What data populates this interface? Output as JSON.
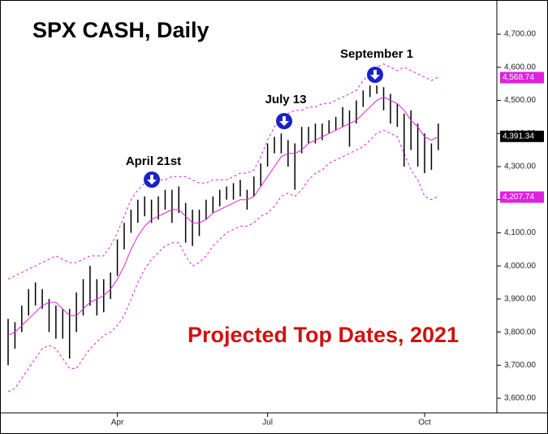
{
  "chart_data": {
    "type": "ohlc",
    "title": "SPX CASH, Daily",
    "subtitle": "Projected Top Dates, 2021",
    "annotations": [
      "April 21st",
      "July 13",
      "September 1"
    ],
    "categories": [
      null,
      null,
      null,
      null,
      null,
      null,
      null,
      null,
      null,
      null,
      null,
      null,
      null,
      null,
      null,
      null,
      "Apr",
      null,
      null,
      null,
      null,
      null,
      null,
      null,
      null,
      null,
      null,
      null,
      null,
      null,
      null,
      null,
      null,
      null,
      null,
      null,
      null,
      null,
      "Jul",
      null,
      null,
      null,
      null,
      null,
      null,
      null,
      null,
      null,
      null,
      null,
      null,
      null,
      null,
      null,
      null,
      null,
      null,
      null,
      null,
      null,
      null,
      "Oct",
      null,
      null
    ],
    "high": [
      3840,
      3830,
      3880,
      3930,
      3950,
      3930,
      3900,
      3880,
      3870,
      3870,
      3920,
      3960,
      4000,
      3960,
      3960,
      3980,
      4080,
      4130,
      4170,
      4200,
      4210,
      4200,
      4210,
      4230,
      4230,
      4240,
      4190,
      4170,
      4170,
      4200,
      4210,
      4230,
      4240,
      4250,
      4260,
      4230,
      4270,
      4310,
      4370,
      4390,
      4400,
      4380,
      4370,
      4420,
      4420,
      4430,
      4430,
      4440,
      4450,
      4480,
      4470,
      4500,
      4530,
      4545,
      4545,
      4540,
      4520,
      4490,
      4460,
      4470,
      4430,
      4400,
      4370,
      4430
    ],
    "low": [
      3700,
      3750,
      3800,
      3850,
      3880,
      3870,
      3800,
      3780,
      3780,
      3720,
      3800,
      3850,
      3880,
      3850,
      3860,
      3900,
      3970,
      4050,
      4100,
      4130,
      4150,
      4130,
      4140,
      4170,
      4130,
      4160,
      4070,
      4060,
      4090,
      4140,
      4160,
      4180,
      4200,
      4200,
      4210,
      4170,
      4210,
      4240,
      4300,
      4340,
      4340,
      4300,
      4230,
      4340,
      4370,
      4370,
      4380,
      4400,
      4410,
      4420,
      4360,
      4430,
      4480,
      4510,
      4520,
      4470,
      4430,
      4420,
      4300,
      4350,
      4300,
      4280,
      4290,
      4350
    ],
    "ma": [
      3790,
      3800,
      3820,
      3840,
      3860,
      3880,
      3890,
      3890,
      3870,
      3850,
      3850,
      3870,
      3890,
      3900,
      3910,
      3930,
      3960,
      4000,
      4050,
      4090,
      4120,
      4140,
      4150,
      4160,
      4170,
      4170,
      4150,
      4130,
      4130,
      4140,
      4160,
      4170,
      4180,
      4190,
      4200,
      4200,
      4210,
      4240,
      4270,
      4300,
      4330,
      4340,
      4340,
      4350,
      4370,
      4380,
      4390,
      4400,
      4410,
      4420,
      4430,
      4440,
      4460,
      4480,
      4500,
      4510,
      4500,
      4490,
      4470,
      4440,
      4420,
      4390,
      4380,
      4390
    ],
    "upper_band": [
      3960,
      3970,
      3980,
      3990,
      4000,
      4010,
      4020,
      4030,
      4020,
      4010,
      4010,
      4020,
      4030,
      4030,
      4030,
      4060,
      4100,
      4150,
      4200,
      4230,
      4250,
      4260,
      4260,
      4260,
      4270,
      4270,
      4270,
      4260,
      4250,
      4250,
      4260,
      4260,
      4260,
      4270,
      4280,
      4280,
      4290,
      4330,
      4380,
      4420,
      4450,
      4460,
      4470,
      4470,
      4480,
      4480,
      4490,
      4490,
      4500,
      4510,
      4520,
      4530,
      4560,
      4580,
      4600,
      4610,
      4600,
      4590,
      4600,
      4590,
      4580,
      4570,
      4560,
      4570
    ],
    "lower_band": [
      3620,
      3630,
      3660,
      3690,
      3720,
      3750,
      3760,
      3750,
      3720,
      3690,
      3690,
      3720,
      3750,
      3770,
      3790,
      3800,
      3820,
      3850,
      3900,
      3950,
      3990,
      4020,
      4040,
      4060,
      4070,
      4070,
      4030,
      4000,
      4010,
      4030,
      4060,
      4080,
      4100,
      4110,
      4120,
      4120,
      4130,
      4150,
      4160,
      4180,
      4210,
      4220,
      4210,
      4230,
      4260,
      4280,
      4290,
      4310,
      4320,
      4330,
      4340,
      4350,
      4360,
      4380,
      4400,
      4410,
      4400,
      4390,
      4340,
      4290,
      4260,
      4210,
      4200,
      4210
    ],
    "price_labels": [
      {
        "value": 4568.74,
        "label": "4,568.74",
        "color": "#e020e0"
      },
      {
        "value": 4391.34,
        "label": "4,391.34",
        "color": "#000000"
      },
      {
        "value": 4207.74,
        "label": "4,207.74",
        "color": "#e020e0"
      }
    ],
    "bar_color": "#000000",
    "ma_color": "#e020e0",
    "band_color": "#e020e0",
    "arrow_color": "#1a22c8",
    "subtitle_color": "#d01010",
    "ylim": [
      3556,
      4791
    ],
    "yticks": [
      {
        "value": 3600,
        "label": "3,600.00"
      },
      {
        "value": 3700,
        "label": "3,700.00"
      },
      {
        "value": 3800,
        "label": "3,800.00"
      },
      {
        "value": 3900,
        "label": "3,900.00"
      },
      {
        "value": 4000,
        "label": "4,000.00"
      },
      {
        "value": 4100,
        "label": "4,100.00"
      },
      {
        "value": 4200,
        "label": "4,200.00"
      },
      {
        "value": 4300,
        "label": "4,300.00"
      },
      {
        "value": 4400,
        "label": "4,400.00"
      },
      {
        "value": 4500,
        "label": "4,500.00"
      },
      {
        "value": 4600,
        "label": "4,600.00"
      },
      {
        "value": 4700,
        "label": "4,700.00"
      }
    ]
  }
}
